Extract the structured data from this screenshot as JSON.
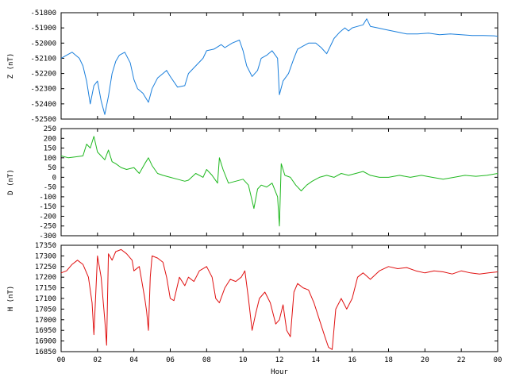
{
  "chart_data": [
    {
      "type": "line",
      "ylabel": "Z (nT)",
      "ylim": [
        -52500,
        -51800
      ],
      "yticks": [
        -51800,
        -51900,
        -52000,
        -52100,
        -52200,
        -52300,
        -52400,
        -52500
      ],
      "xlim": [
        0,
        24
      ],
      "color": "#1a7fdc",
      "series": [
        {
          "x": [
            0,
            0.3,
            0.6,
            1.0,
            1.2,
            1.4,
            1.6,
            1.8,
            2.0,
            2.2,
            2.4,
            2.6,
            2.8,
            3.0,
            3.2,
            3.5,
            3.8,
            4.0,
            4.2,
            4.5,
            4.8,
            5.0,
            5.3,
            5.6,
            5.8,
            6.0,
            6.4,
            6.8,
            7.0,
            7.4,
            7.8,
            8.0,
            8.4,
            8.8,
            9.0,
            9.4,
            9.8,
            10.0,
            10.2,
            10.5,
            10.8,
            11.0,
            11.3,
            11.6,
            11.9,
            12.0,
            12.2,
            12.5,
            12.8,
            13.0,
            13.3,
            13.6,
            14.0,
            14.3,
            14.6,
            14.8,
            15.0,
            15.3,
            15.6,
            15.8,
            16.0,
            16.3,
            16.6,
            16.8,
            17.0,
            17.4,
            17.8,
            18.2,
            18.6,
            19.0,
            19.6,
            20.2,
            20.8,
            21.4,
            22.0,
            22.6,
            23.2,
            23.8,
            24.0
          ],
          "values": [
            -52100,
            -52080,
            -52060,
            -52100,
            -52150,
            -52250,
            -52400,
            -52280,
            -52250,
            -52380,
            -52470,
            -52350,
            -52200,
            -52120,
            -52080,
            -52060,
            -52130,
            -52240,
            -52300,
            -52330,
            -52390,
            -52300,
            -52230,
            -52200,
            -52180,
            -52220,
            -52290,
            -52280,
            -52200,
            -52150,
            -52100,
            -52050,
            -52040,
            -52010,
            -52030,
            -52000,
            -51980,
            -52050,
            -52150,
            -52220,
            -52180,
            -52100,
            -52080,
            -52050,
            -52100,
            -52340,
            -52250,
            -52200,
            -52100,
            -52040,
            -52020,
            -52000,
            -52000,
            -52030,
            -52070,
            -52020,
            -51970,
            -51930,
            -51900,
            -51920,
            -51900,
            -51890,
            -51880,
            -51840,
            -51890,
            -51900,
            -51910,
            -51920,
            -51930,
            -51940,
            -51940,
            -51935,
            -51945,
            -51940,
            -51945,
            -51950,
            -51950,
            -51952,
            -51955
          ]
        }
      ]
    },
    {
      "type": "line",
      "ylabel": "D (nT)",
      "ylim": [
        -300,
        250
      ],
      "yticks": [
        250,
        200,
        150,
        100,
        50,
        0,
        -50,
        -100,
        -150,
        -200,
        -250,
        -300
      ],
      "xlim": [
        0,
        24
      ],
      "color": "#1fb81f",
      "series": [
        {
          "x": [
            0,
            0.4,
            0.8,
            1.2,
            1.4,
            1.6,
            1.8,
            2.0,
            2.2,
            2.4,
            2.6,
            2.8,
            3.0,
            3.3,
            3.6,
            4.0,
            4.3,
            4.6,
            4.8,
            5.0,
            5.3,
            5.6,
            6.0,
            6.4,
            6.8,
            7.0,
            7.4,
            7.8,
            8.0,
            8.3,
            8.6,
            8.7,
            8.9,
            9.2,
            9.6,
            10.0,
            10.3,
            10.6,
            10.8,
            11.0,
            11.3,
            11.6,
            11.9,
            12.0,
            12.1,
            12.3,
            12.6,
            12.9,
            13.2,
            13.5,
            13.8,
            14.2,
            14.6,
            15.0,
            15.4,
            15.8,
            16.2,
            16.6,
            17.0,
            17.5,
            18.0,
            18.6,
            19.2,
            19.8,
            20.4,
            21.0,
            21.6,
            22.2,
            22.8,
            23.4,
            24.0
          ],
          "values": [
            110,
            100,
            105,
            110,
            170,
            150,
            210,
            130,
            110,
            90,
            140,
            80,
            70,
            50,
            40,
            50,
            20,
            70,
            100,
            60,
            20,
            10,
            0,
            -10,
            -20,
            -15,
            20,
            0,
            40,
            10,
            -30,
            100,
            40,
            -30,
            -20,
            -10,
            -40,
            -160,
            -60,
            -40,
            -50,
            -30,
            -100,
            -250,
            70,
            10,
            0,
            -40,
            -70,
            -40,
            -20,
            0,
            10,
            0,
            20,
            10,
            20,
            30,
            10,
            0,
            0,
            10,
            0,
            10,
            0,
            -10,
            0,
            10,
            5,
            10,
            20
          ]
        }
      ]
    },
    {
      "type": "line",
      "ylabel": "H (nT)",
      "xlabel": "Hour",
      "ylim": [
        16850,
        17350
      ],
      "yticks": [
        17350,
        17300,
        17250,
        17200,
        17150,
        17100,
        17050,
        17000,
        16950,
        16900,
        16850
      ],
      "xlim": [
        0,
        24
      ],
      "xticks": [
        "00",
        "02",
        "04",
        "06",
        "08",
        "10",
        "12",
        "14",
        "16",
        "18",
        "20",
        "22",
        "00"
      ],
      "color": "#e01010",
      "series": [
        {
          "x": [
            0,
            0.3,
            0.6,
            0.9,
            1.2,
            1.5,
            1.7,
            1.8,
            2.0,
            2.2,
            2.4,
            2.5,
            2.6,
            2.8,
            3.0,
            3.3,
            3.6,
            3.9,
            4.0,
            4.3,
            4.6,
            4.7,
            4.8,
            4.9,
            5.0,
            5.3,
            5.6,
            5.8,
            6.0,
            6.2,
            6.5,
            6.8,
            7.0,
            7.3,
            7.6,
            8.0,
            8.3,
            8.5,
            8.7,
            9.0,
            9.3,
            9.6,
            9.9,
            10.1,
            10.3,
            10.5,
            10.7,
            10.9,
            11.2,
            11.5,
            11.8,
            12.0,
            12.2,
            12.4,
            12.6,
            12.8,
            13.0,
            13.3,
            13.6,
            13.9,
            14.2,
            14.5,
            14.7,
            14.9,
            15.1,
            15.4,
            15.7,
            16.0,
            16.3,
            16.6,
            17.0,
            17.5,
            18.0,
            18.5,
            19.0,
            19.5,
            20.0,
            20.5,
            21.0,
            21.5,
            22.0,
            22.5,
            23.0,
            23.5,
            24.0
          ],
          "values": [
            17220,
            17230,
            17260,
            17280,
            17260,
            17200,
            17080,
            16930,
            17300,
            17200,
            17000,
            16880,
            17310,
            17280,
            17320,
            17330,
            17310,
            17280,
            17230,
            17250,
            17100,
            17040,
            16950,
            17200,
            17300,
            17290,
            17270,
            17200,
            17100,
            17090,
            17200,
            17160,
            17200,
            17180,
            17230,
            17250,
            17200,
            17100,
            17080,
            17150,
            17190,
            17180,
            17200,
            17230,
            17100,
            16950,
            17030,
            17100,
            17130,
            17080,
            16980,
            17000,
            17070,
            16950,
            16920,
            17130,
            17170,
            17150,
            17140,
            17080,
            17000,
            16920,
            16870,
            16860,
            17050,
            17100,
            17050,
            17100,
            17200,
            17220,
            17190,
            17230,
            17250,
            17240,
            17245,
            17230,
            17220,
            17230,
            17225,
            17215,
            17230,
            17220,
            17215,
            17220,
            17225
          ]
        }
      ]
    }
  ]
}
